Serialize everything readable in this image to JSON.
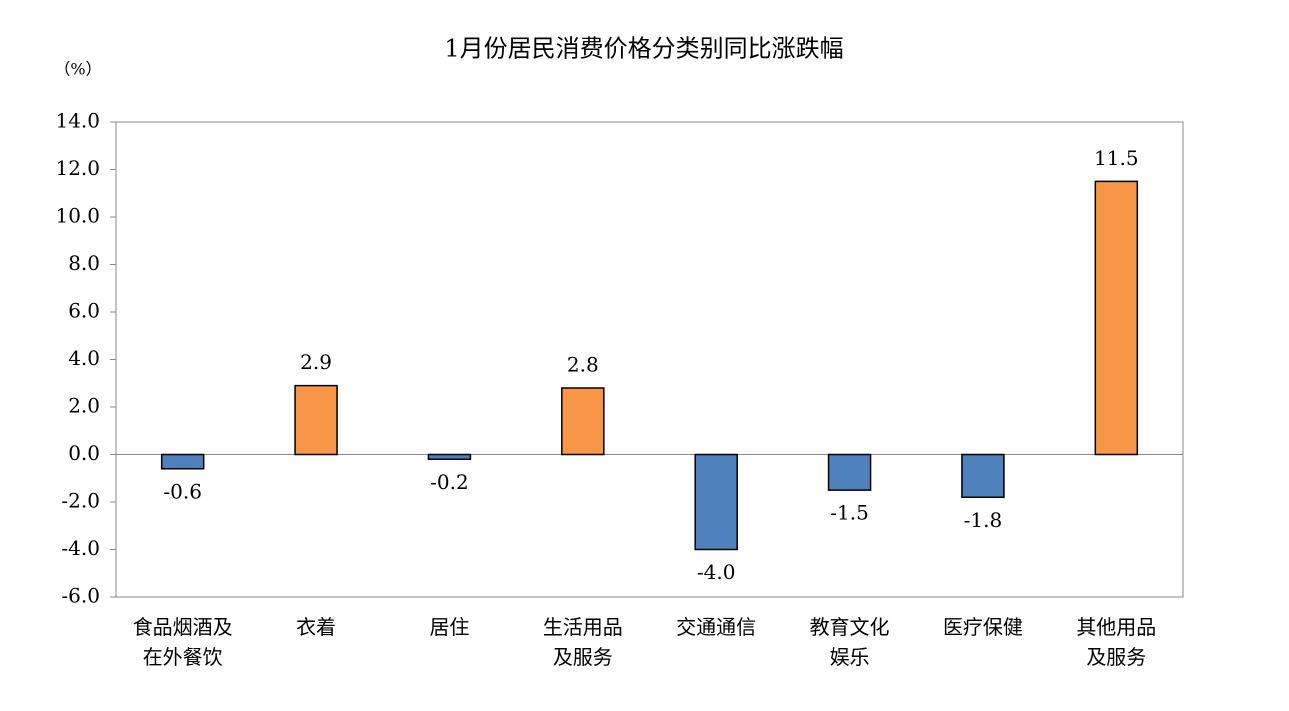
{
  "chart_data": {
    "type": "bar",
    "title": "1月份居民消费价格分类别同比涨跌幅",
    "y_axis_label": "（%）",
    "categories": [
      "食品烟酒及\n在外餐饮",
      "衣着",
      "居住",
      "生活用品\n及服务",
      "交通通信",
      "教育文化\n娱乐",
      "医疗保健",
      "其他用品\n及服务"
    ],
    "values": [
      -0.6,
      2.9,
      -0.2,
      2.8,
      -4.0,
      -1.5,
      -1.8,
      11.5
    ],
    "value_labels": [
      "-0.6",
      "2.9",
      "-0.2",
      "2.8",
      "-4.0",
      "-1.5",
      "-1.8",
      "11.5"
    ],
    "positive_color": "#f79646",
    "negative_color": "#4f81bd",
    "ylim": [
      -6,
      14
    ],
    "yticks": [
      {
        "value": -6,
        "label": "-6.0"
      },
      {
        "value": -4,
        "label": "-4.0"
      },
      {
        "value": -2,
        "label": "-2.0"
      },
      {
        "value": 0,
        "label": "0.0"
      },
      {
        "value": 2,
        "label": "2.0"
      },
      {
        "value": 4,
        "label": "4.0"
      },
      {
        "value": 6,
        "label": "6.0"
      },
      {
        "value": 8,
        "label": "8.0"
      },
      {
        "value": 10,
        "label": "10.0"
      },
      {
        "value": 12,
        "label": "12.0"
      },
      {
        "value": 14,
        "label": "14.0"
      }
    ]
  }
}
